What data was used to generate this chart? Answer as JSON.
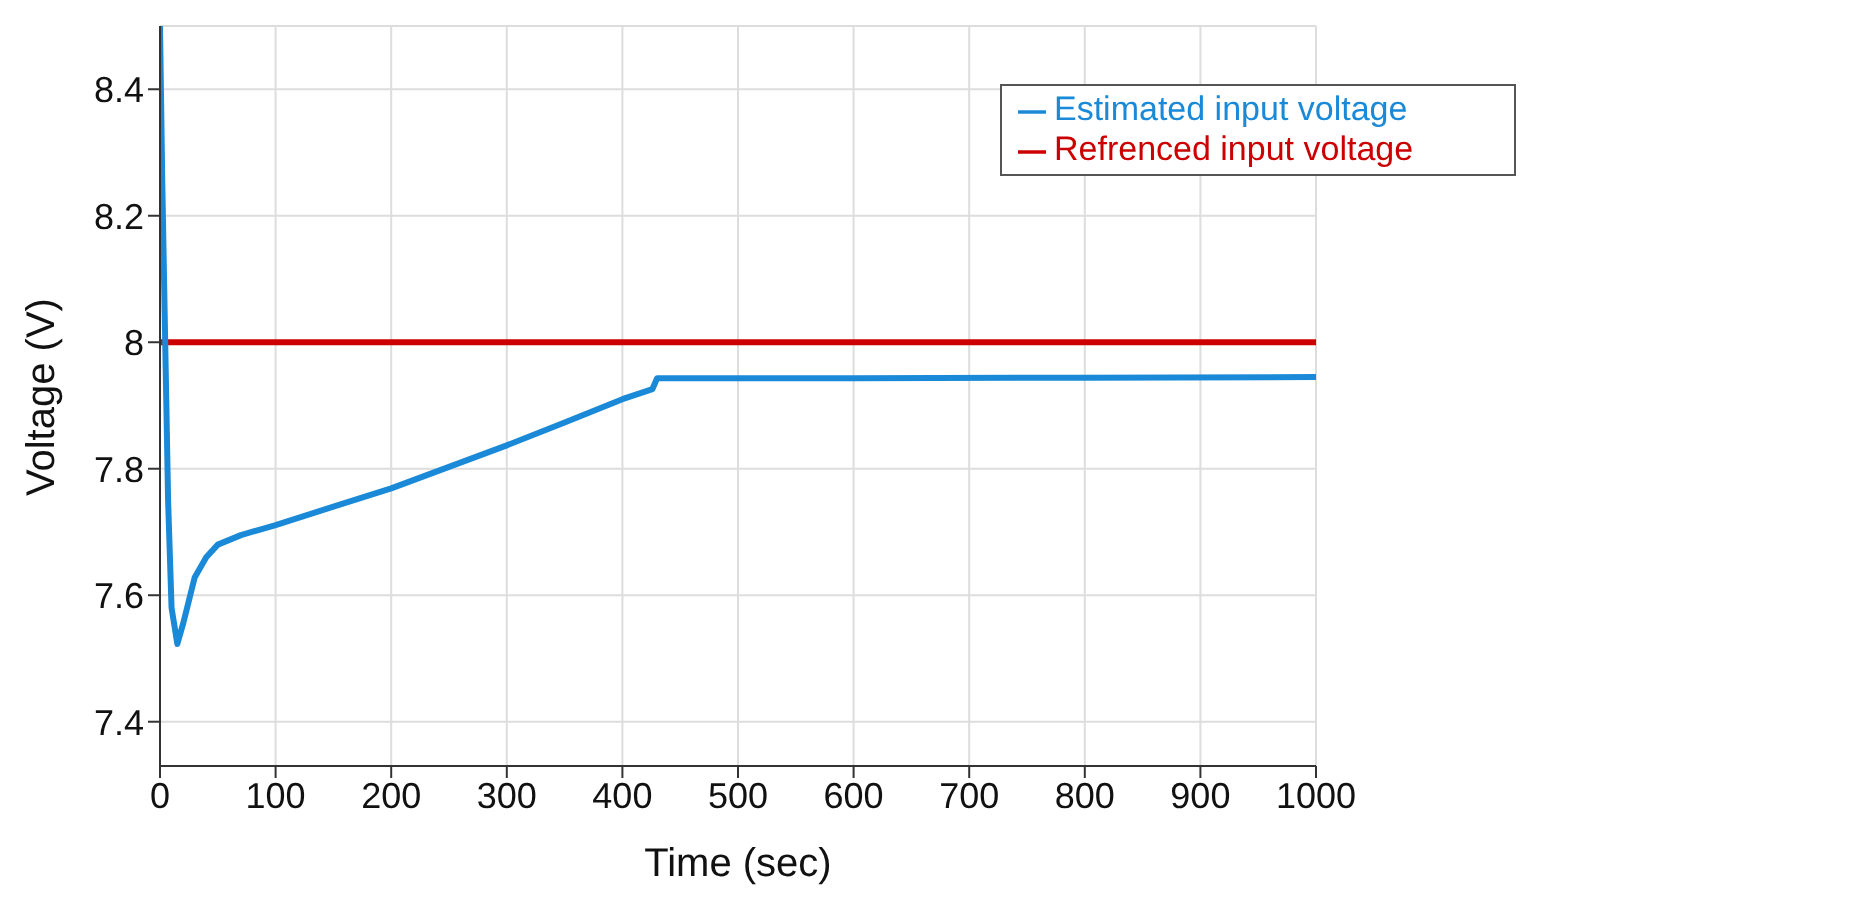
{
  "chart_data": {
    "type": "line",
    "xlabel": "Time (sec)",
    "ylabel": "Voltage (V)",
    "xlim": [
      0,
      1000
    ],
    "xticks": [
      0,
      100,
      200,
      300,
      400,
      500,
      600,
      700,
      800,
      900,
      1000
    ],
    "ylim": [
      7.33,
      8.5
    ],
    "yticks": [
      7.4,
      7.6,
      7.8,
      8,
      8.2,
      8.4
    ],
    "grid": true,
    "legend": "top right",
    "line_style": "solid",
    "marker": "none",
    "series": [
      {
        "name": "Refrenced input voltage",
        "color": "#cc0000",
        "x": [
          0,
          1000
        ],
        "values": [
          8,
          8
        ]
      },
      {
        "name": "Estimated input voltage",
        "color": "#1a8ad8",
        "x": [
          0,
          2,
          4.5,
          7,
          10,
          15,
          20,
          30,
          40,
          50,
          70,
          100,
          150,
          200,
          250,
          300,
          350,
          400,
          426,
          430,
          600,
          800,
          1000
        ],
        "values": [
          8.5,
          8.25,
          8.0,
          7.75,
          7.58,
          7.523,
          7.555,
          7.628,
          7.66,
          7.68,
          7.695,
          7.711,
          7.74,
          7.769,
          7.803,
          7.837,
          7.873,
          7.91,
          7.926,
          7.943,
          7.943,
          7.944,
          7.945
        ]
      }
    ]
  }
}
